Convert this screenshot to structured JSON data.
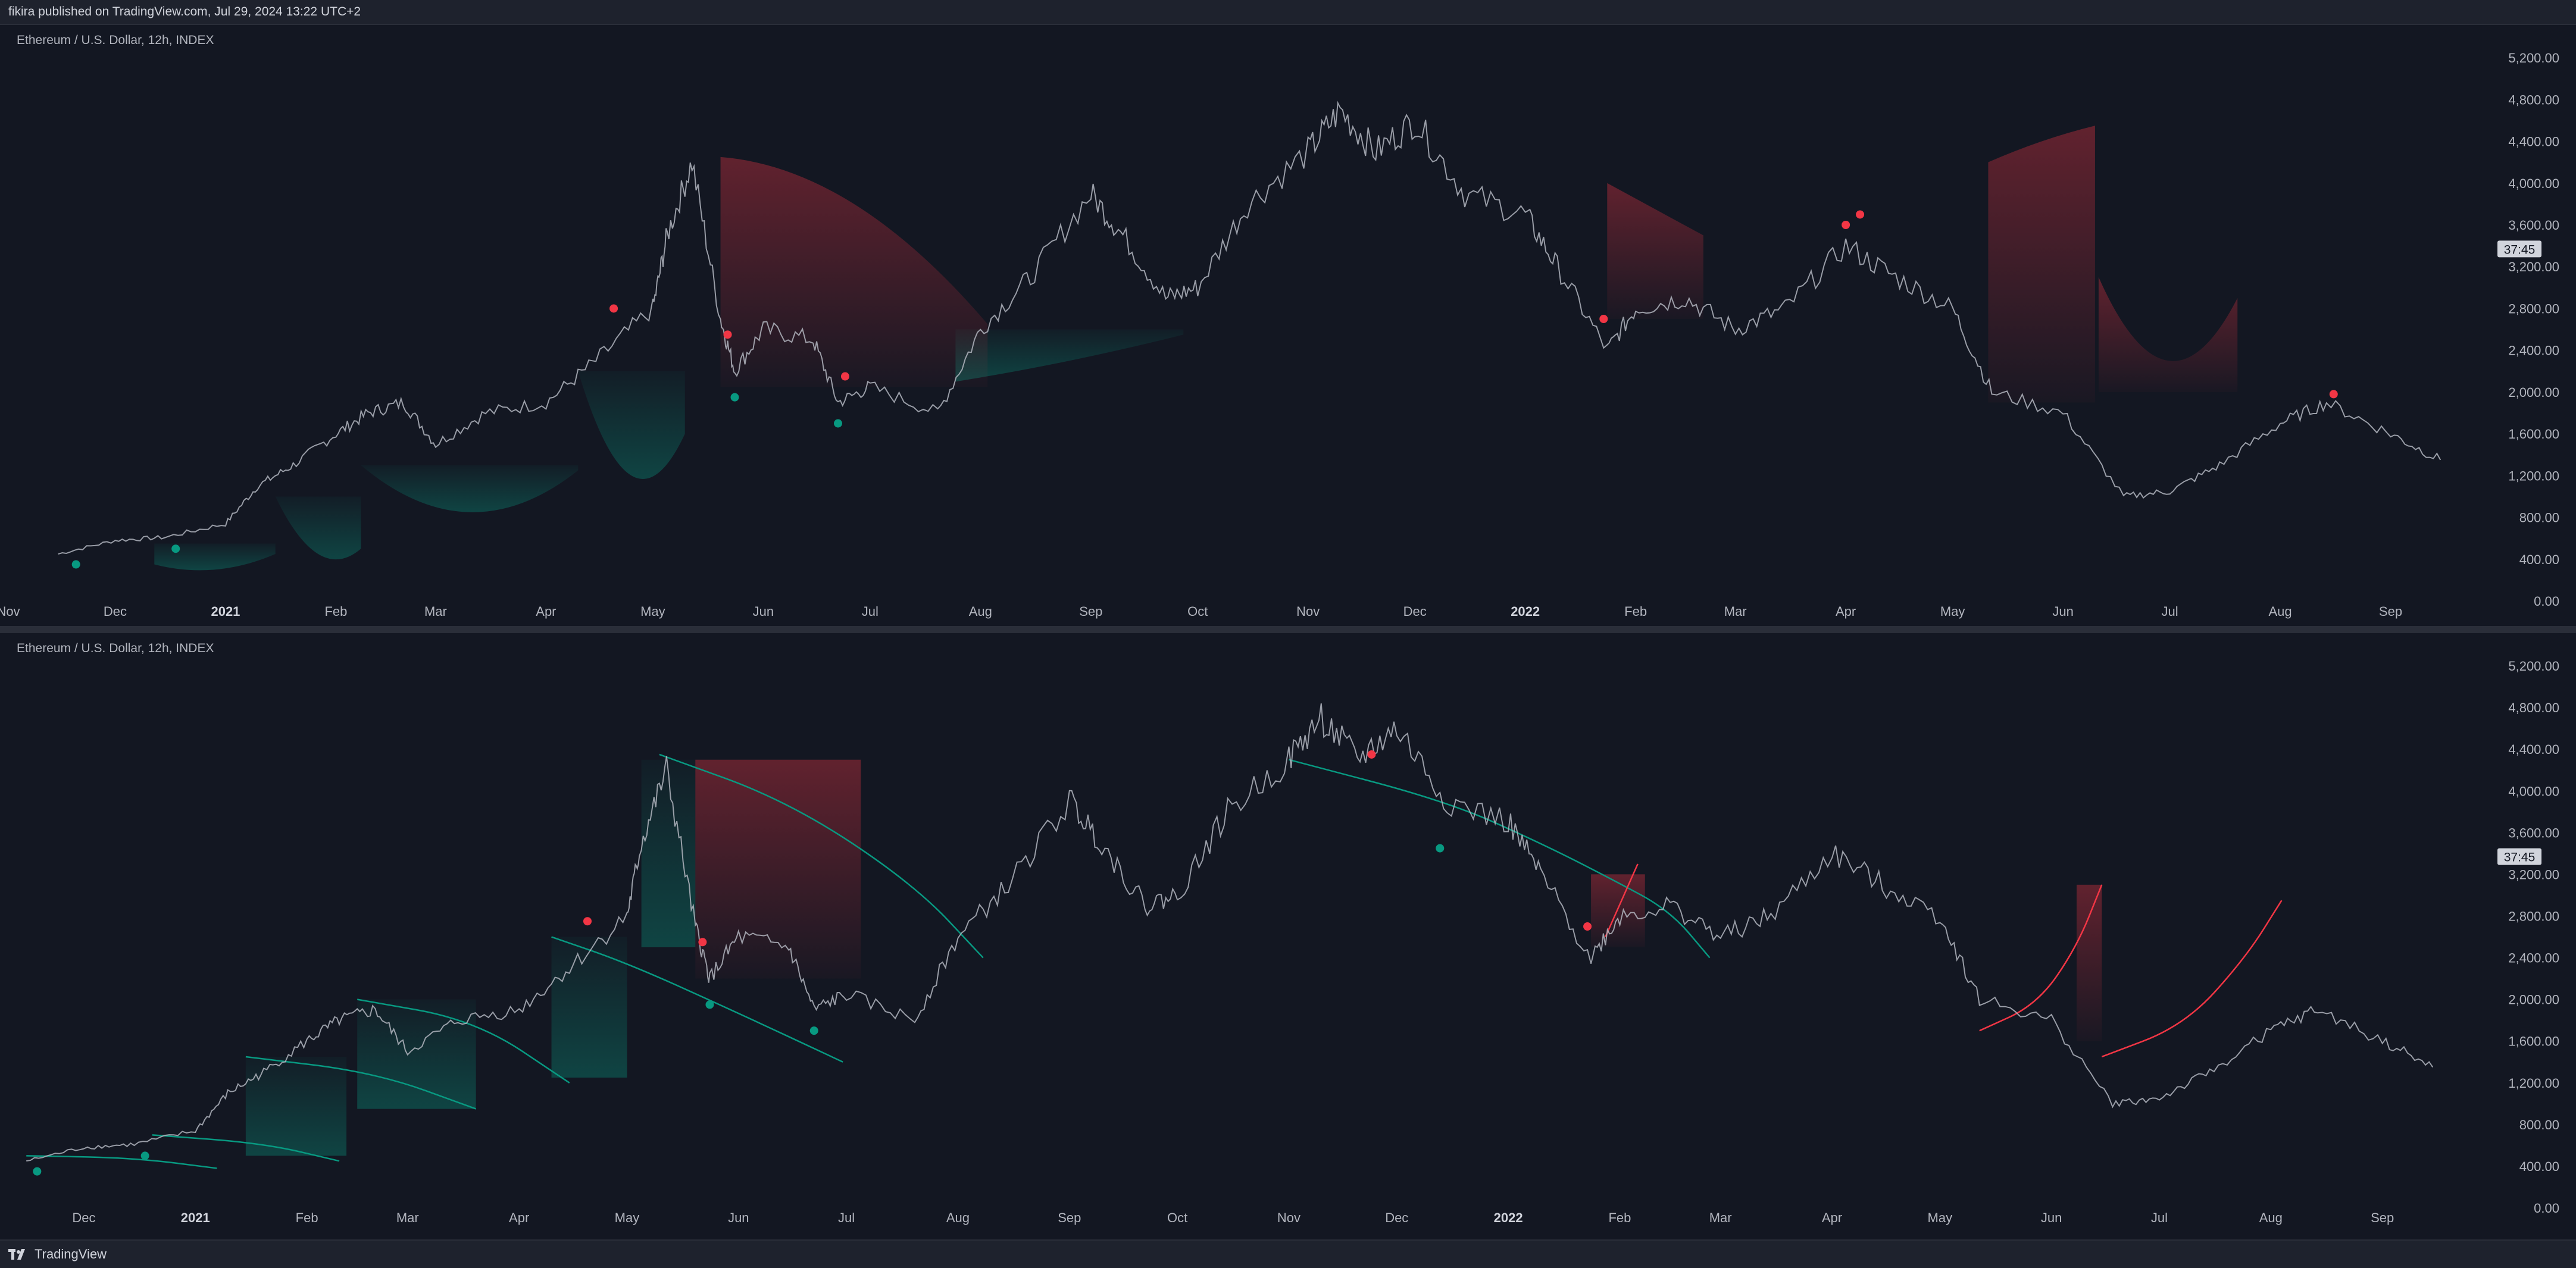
{
  "header": {
    "published_text": "fikira published on TradingView.com, Jul 29, 2024 13:22 UTC+2"
  },
  "footer": {
    "brand": "TradingView",
    "logo_icon": "tradingview-logo-icon"
  },
  "colors": {
    "background": "#131722",
    "price": "#b2b5be",
    "bull": "#089981",
    "bear": "#f23645",
    "axis_text": "#b2b5be"
  },
  "chart_data": [
    {
      "type": "line",
      "title": "Ethereum / U.S. Dollar, 12h, INDEX",
      "ylim": [
        0,
        5400
      ],
      "y_ticks": [
        "5,200.00",
        "4,800.00",
        "4,400.00",
        "4,000.00",
        "3,600.00",
        "3,200.00",
        "2,800.00",
        "2,400.00",
        "2,000.00",
        "1,600.00",
        "1,200.00",
        "800.00",
        "400.00",
        "0.00"
      ],
      "x_ticks": [
        "Nov",
        "Dec",
        "2021",
        "Feb",
        "Mar",
        "Apr",
        "May",
        "Jun",
        "Jul",
        "Aug",
        "Sep",
        "Oct",
        "Nov",
        "Dec",
        "2022",
        "Feb",
        "Mar",
        "Apr",
        "May",
        "Jun",
        "Jul",
        "Aug",
        "Sep"
      ],
      "price_label": "37:45",
      "price_label_value": 3370,
      "x": [
        "2020-11-15",
        "2020-12-01",
        "2020-12-15",
        "2021-01-01",
        "2021-01-10",
        "2021-01-20",
        "2021-02-01",
        "2021-02-10",
        "2021-02-20",
        "2021-03-01",
        "2021-03-15",
        "2021-04-01",
        "2021-04-15",
        "2021-05-01",
        "2021-05-05",
        "2021-05-12",
        "2021-05-20",
        "2021-05-24",
        "2021-06-01",
        "2021-06-15",
        "2021-06-22",
        "2021-07-01",
        "2021-07-20",
        "2021-08-01",
        "2021-08-15",
        "2021-09-01",
        "2021-09-10",
        "2021-09-22",
        "2021-10-01",
        "2021-10-15",
        "2021-11-01",
        "2021-11-10",
        "2021-11-20",
        "2021-12-01",
        "2021-12-15",
        "2022-01-01",
        "2022-01-10",
        "2022-01-24",
        "2022-02-01",
        "2022-02-15",
        "2022-03-01",
        "2022-03-15",
        "2022-04-01",
        "2022-04-15",
        "2022-05-01",
        "2022-05-12",
        "2022-06-01",
        "2022-06-18",
        "2022-07-01",
        "2022-07-15",
        "2022-08-01",
        "2022-08-14",
        "2022-09-01",
        "2022-09-15"
      ],
      "series": [
        {
          "values": [
            450,
            580,
            610,
            740,
            1100,
            1300,
            1600,
            1800,
            1900,
            1500,
            1800,
            1900,
            2300,
            2800,
            3500,
            4200,
            2700,
            2200,
            2600,
            2500,
            1900,
            2050,
            1800,
            2600,
            3100,
            3900,
            3500,
            2900,
            3000,
            3800,
            4300,
            4700,
            4300,
            4600,
            3900,
            3700,
            3200,
            2400,
            2800,
            2900,
            2600,
            2800,
            3400,
            3100,
            2800,
            2000,
            1800,
            1000,
            1050,
            1300,
            1700,
            1900,
            1600,
            1350
          ]
        }
      ],
      "signals": {
        "green": [
          {
            "x": "2020-11-20",
            "y": 350
          },
          {
            "x": "2020-12-18",
            "y": 500
          },
          {
            "x": "2021-05-24",
            "y": 1950
          },
          {
            "x": "2021-06-22",
            "y": 1700
          }
        ],
        "red": [
          {
            "x": "2021-04-20",
            "y": 2800
          },
          {
            "x": "2021-05-22",
            "y": 2550
          },
          {
            "x": "2021-06-24",
            "y": 2150
          },
          {
            "x": "2022-01-23",
            "y": 2700
          },
          {
            "x": "2022-04-01",
            "y": 3600
          },
          {
            "x": "2022-04-05",
            "y": 3700
          },
          {
            "x": "2022-08-16",
            "y": 1980
          }
        ]
      },
      "bull_zones": [
        {
          "x_start": "2020-12-12",
          "x_end": "2021-01-15",
          "top": 550,
          "bottom_curve": [
            350,
            300,
            450
          ]
        },
        {
          "x_start": "2021-01-15",
          "x_end": "2021-02-08",
          "top": 1000,
          "bottom_curve": [
            1000,
            450,
            500
          ]
        },
        {
          "x_start": "2021-02-08",
          "x_end": "2021-04-10",
          "top": 1300,
          "bottom_curve": [
            1300,
            850,
            1250
          ]
        },
        {
          "x_start": "2021-04-10",
          "x_end": "2021-05-10",
          "top": 2200,
          "bottom_curve": [
            2200,
            1200,
            1600
          ]
        },
        {
          "x_start": "2021-07-25",
          "x_end": "2021-09-27",
          "top": 2600,
          "bottom_curve": [
            2100,
            2300,
            2550
          ]
        }
      ],
      "bear_zones": [
        {
          "x_start": "2021-05-20",
          "x_end": "2021-08-03",
          "bottom": 2050,
          "top_curve": [
            4250,
            3800,
            2650
          ]
        },
        {
          "x_start": "2022-01-24",
          "x_end": "2022-02-20",
          "bottom": 2700,
          "top_curve": [
            4000,
            3750,
            3500
          ]
        },
        {
          "x_start": "2022-05-11",
          "x_end": "2022-06-10",
          "bottom": 1900,
          "top_curve": [
            4200,
            4400,
            4550
          ]
        },
        {
          "x_start": "2022-06-11",
          "x_end": "2022-07-20",
          "bottom": 2000,
          "top_curve": [
            3100,
            2300,
            2900
          ]
        }
      ]
    },
    {
      "type": "line",
      "title": "Ethereum / U.S. Dollar, 12h, INDEX",
      "ylim": [
        0,
        5400
      ],
      "y_ticks": [
        "5,200.00",
        "4,800.00",
        "4,400.00",
        "4,000.00",
        "3,600.00",
        "3,200.00",
        "2,800.00",
        "2,400.00",
        "2,000.00",
        "1,600.00",
        "1,200.00",
        "800.00",
        "400.00",
        "0.00"
      ],
      "x_ticks": [
        "Dec",
        "2021",
        "Feb",
        "Mar",
        "Apr",
        "May",
        "Jun",
        "Jul",
        "Aug",
        "Sep",
        "Oct",
        "Nov",
        "Dec",
        "2022",
        "Feb",
        "Mar",
        "Apr",
        "May",
        "Jun",
        "Jul",
        "Aug",
        "Sep"
      ],
      "price_label": "37:45",
      "price_label_value": 3370,
      "x": [
        "2020-11-15",
        "2020-12-01",
        "2020-12-15",
        "2021-01-01",
        "2021-01-10",
        "2021-01-20",
        "2021-02-01",
        "2021-02-10",
        "2021-02-20",
        "2021-03-01",
        "2021-03-15",
        "2021-04-01",
        "2021-04-15",
        "2021-05-01",
        "2021-05-05",
        "2021-05-12",
        "2021-05-20",
        "2021-05-24",
        "2021-06-01",
        "2021-06-15",
        "2021-06-22",
        "2021-07-01",
        "2021-07-20",
        "2021-08-01",
        "2021-08-15",
        "2021-09-01",
        "2021-09-10",
        "2021-09-22",
        "2021-10-01",
        "2021-10-15",
        "2021-11-01",
        "2021-11-10",
        "2021-11-20",
        "2021-12-01",
        "2021-12-15",
        "2022-01-01",
        "2022-01-10",
        "2022-01-24",
        "2022-02-01",
        "2022-02-15",
        "2022-03-01",
        "2022-03-15",
        "2022-04-01",
        "2022-04-15",
        "2022-05-01",
        "2022-05-12",
        "2022-06-01",
        "2022-06-18",
        "2022-07-01",
        "2022-07-15",
        "2022-08-01",
        "2022-08-14",
        "2022-09-01",
        "2022-09-15"
      ],
      "series": [
        {
          "values": [
            450,
            580,
            610,
            740,
            1100,
            1300,
            1600,
            1800,
            1900,
            1500,
            1800,
            1900,
            2300,
            2800,
            3500,
            4200,
            2700,
            2200,
            2600,
            2500,
            1900,
            2050,
            1800,
            2600,
            3100,
            3900,
            3500,
            2900,
            3000,
            3800,
            4300,
            4700,
            4300,
            4600,
            3900,
            3700,
            3200,
            2400,
            2800,
            2900,
            2600,
            2800,
            3400,
            3100,
            2800,
            2000,
            1800,
            1000,
            1050,
            1300,
            1700,
            1900,
            1600,
            1350
          ]
        }
      ],
      "signals": {
        "green": [
          {
            "x": "2020-11-18",
            "y": 350
          },
          {
            "x": "2020-12-18",
            "y": 500
          },
          {
            "x": "2021-05-24",
            "y": 1950
          },
          {
            "x": "2021-06-22",
            "y": 1700
          },
          {
            "x": "2021-12-13",
            "y": 3450
          }
        ],
        "red": [
          {
            "x": "2021-04-20",
            "y": 2750
          },
          {
            "x": "2021-05-22",
            "y": 2550
          },
          {
            "x": "2021-11-24",
            "y": 4350
          },
          {
            "x": "2022-01-23",
            "y": 2700
          }
        ]
      },
      "bull_curves": [
        {
          "points": [
            [
              "2020-11-15",
              500
            ],
            [
              "2020-12-15",
              480
            ],
            [
              "2021-01-07",
              380
            ]
          ]
        },
        {
          "points": [
            [
              "2020-12-20",
              700
            ],
            [
              "2021-01-20",
              620
            ],
            [
              "2021-02-10",
              450
            ]
          ]
        },
        {
          "points": [
            [
              "2021-01-15",
              1450
            ],
            [
              "2021-02-20",
              1300
            ],
            [
              "2021-03-20",
              950
            ]
          ]
        },
        {
          "points": [
            [
              "2021-02-15",
              2000
            ],
            [
              "2021-03-20",
              1800
            ],
            [
              "2021-04-15",
              1200
            ]
          ]
        },
        {
          "points": [
            [
              "2021-04-10",
              2600
            ],
            [
              "2021-05-01",
              2350
            ],
            [
              "2021-05-30",
              1900
            ],
            [
              "2021-06-30",
              1400
            ]
          ]
        },
        {
          "points": [
            [
              "2021-05-10",
              4350
            ],
            [
              "2021-06-15",
              3900
            ],
            [
              "2021-07-20",
              3100
            ],
            [
              "2021-08-08",
              2400
            ]
          ]
        },
        {
          "points": [
            [
              "2021-11-01",
              4300
            ],
            [
              "2021-12-15",
              3900
            ],
            [
              "2022-01-10",
              3500
            ],
            [
              "2022-01-30",
              3150
            ],
            [
              "2022-02-15",
              2850
            ],
            [
              "2022-02-26",
              2400
            ]
          ]
        }
      ],
      "bear_curves": [
        {
          "points": [
            [
              "2022-01-28",
              2600
            ],
            [
              "2022-02-06",
              3300
            ]
          ]
        },
        {
          "points": [
            [
              "2022-05-12",
              1700
            ],
            [
              "2022-05-28",
              1950
            ],
            [
              "2022-06-08",
              2500
            ],
            [
              "2022-06-15",
              3100
            ]
          ]
        },
        {
          "points": [
            [
              "2022-06-15",
              1450
            ],
            [
              "2022-07-08",
              1750
            ],
            [
              "2022-07-25",
              2400
            ],
            [
              "2022-08-04",
              2950
            ]
          ]
        }
      ],
      "bull_zones": [
        {
          "x_start": "2021-01-15",
          "x_end": "2021-02-12",
          "top": 1450,
          "bottom": 500
        },
        {
          "x_start": "2021-02-15",
          "x_end": "2021-03-20",
          "top": 2000,
          "bottom": 950
        },
        {
          "x_start": "2021-04-10",
          "x_end": "2021-05-01",
          "top": 2600,
          "bottom": 1250
        },
        {
          "x_start": "2021-05-05",
          "x_end": "2021-05-20",
          "top": 4300,
          "bottom": 2500
        }
      ],
      "bear_zones": [
        {
          "x_start": "2021-05-20",
          "x_end": "2021-07-05",
          "bottom": 2200,
          "top": 4300
        },
        {
          "x_start": "2022-01-24",
          "x_end": "2022-02-08",
          "bottom": 2500,
          "top": 3200
        },
        {
          "x_start": "2022-06-08",
          "x_end": "2022-06-15",
          "bottom": 1600,
          "top": 3100
        }
      ]
    }
  ]
}
